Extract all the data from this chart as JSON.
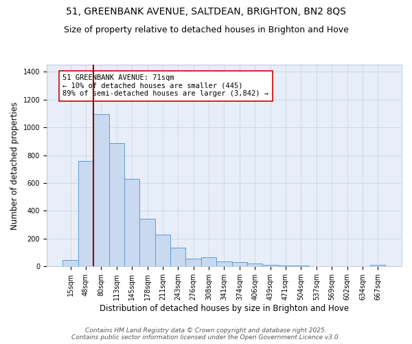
{
  "title_line1": "51, GREENBANK AVENUE, SALTDEAN, BRIGHTON, BN2 8QS",
  "title_line2": "Size of property relative to detached houses in Brighton and Hove",
  "xlabel": "Distribution of detached houses by size in Brighton and Hove",
  "ylabel": "Number of detached properties",
  "categories": [
    "15sqm",
    "48sqm",
    "80sqm",
    "113sqm",
    "145sqm",
    "178sqm",
    "211sqm",
    "243sqm",
    "276sqm",
    "308sqm",
    "341sqm",
    "374sqm",
    "406sqm",
    "439sqm",
    "471sqm",
    "504sqm",
    "537sqm",
    "569sqm",
    "602sqm",
    "634sqm",
    "667sqm"
  ],
  "values": [
    45,
    760,
    1095,
    885,
    630,
    345,
    230,
    135,
    58,
    68,
    35,
    30,
    20,
    10,
    8,
    5,
    2,
    1,
    0,
    1,
    10
  ],
  "bar_color": "#c9d9f0",
  "bar_edge_color": "#5a9bd5",
  "vline_color": "#8b0000",
  "annotation_text": "51 GREENBANK AVENUE: 71sqm\n← 10% of detached houses are smaller (445)\n89% of semi-detached houses are larger (3,842) →",
  "box_edge_color": "#cc0000",
  "box_face_color": "white",
  "ylim": [
    0,
    1450
  ],
  "background_color": "#e8eef8",
  "footer_line1": "Contains HM Land Registry data © Crown copyright and database right 2025.",
  "footer_line2": "Contains public sector information licensed under the Open Government Licence v3.0.",
  "title_fontsize": 10,
  "subtitle_fontsize": 9,
  "tick_fontsize": 7,
  "ylabel_fontsize": 8.5,
  "xlabel_fontsize": 8.5,
  "annotation_fontsize": 7.5,
  "footer_fontsize": 6.5
}
